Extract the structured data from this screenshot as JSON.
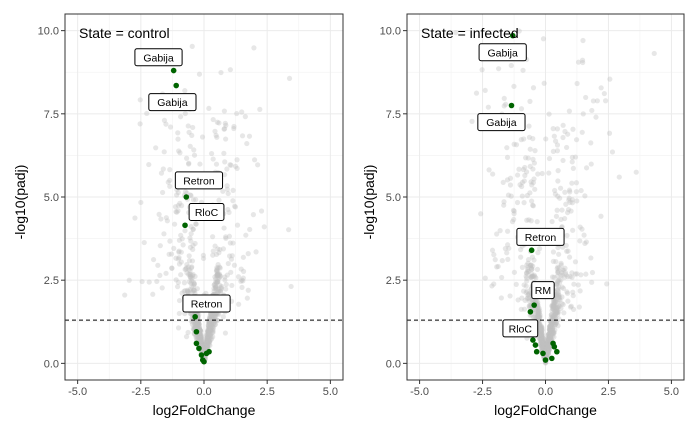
{
  "chart_data": [
    {
      "type": "scatter",
      "panel_label": "State = control",
      "xlabel": "log2FoldChange",
      "ylabel": "-log10(padj)",
      "xlim": [
        -5.5,
        5.5
      ],
      "ylim": [
        -0.5,
        10.5
      ],
      "x_ticks": [
        -5,
        -2.5,
        0,
        2.5,
        5
      ],
      "x_tick_labels": [
        "-5.0",
        "-2.5",
        "0.0",
        "2.5",
        "5.0"
      ],
      "y_ticks": [
        0,
        2.5,
        5,
        7.5,
        10
      ],
      "y_tick_labels": [
        "0.0",
        "2.5",
        "5.0",
        "7.5",
        "10.0"
      ],
      "threshold": 1.3,
      "background_color": "#bfbfbf",
      "highlight_color": "#006400",
      "highlighted": [
        {
          "x": -1.2,
          "y": 8.8
        },
        {
          "x": -1.1,
          "y": 8.35
        },
        {
          "x": -0.7,
          "y": 5.0
        },
        {
          "x": -0.75,
          "y": 4.15
        },
        {
          "x": -0.35,
          "y": 1.4
        },
        {
          "x": -0.3,
          "y": 0.95
        },
        {
          "x": -0.3,
          "y": 0.6
        },
        {
          "x": -0.2,
          "y": 0.45
        },
        {
          "x": -0.1,
          "y": 0.25
        },
        {
          "x": 0.1,
          "y": 0.3
        },
        {
          "x": 0.2,
          "y": 0.35
        },
        {
          "x": -0.05,
          "y": 0.1
        },
        {
          "x": 0.0,
          "y": 0.05
        }
      ],
      "labels": [
        {
          "text": "Gabija",
          "x": -1.8,
          "y": 9.2
        },
        {
          "text": "Gabija",
          "x": -1.25,
          "y": 7.85
        },
        {
          "text": "Retron",
          "x": -0.2,
          "y": 5.5
        },
        {
          "text": "RloC",
          "x": 0.1,
          "y": 4.55
        },
        {
          "text": "Retron",
          "x": 0.1,
          "y": 1.8
        }
      ]
    },
    {
      "type": "scatter",
      "panel_label": "State = infected",
      "xlabel": "log2FoldChange",
      "ylabel": "-log10(padj)",
      "xlim": [
        -5.5,
        5.5
      ],
      "ylim": [
        -0.5,
        10.5
      ],
      "x_ticks": [
        -5,
        -2.5,
        0,
        2.5,
        5
      ],
      "x_tick_labels": [
        "-5.0",
        "-2.5",
        "0.0",
        "2.5",
        "5.0"
      ],
      "y_ticks": [
        0,
        2.5,
        5,
        7.5,
        10
      ],
      "y_tick_labels": [
        "0.0",
        "2.5",
        "5.0",
        "7.5",
        "10.0"
      ],
      "threshold": 1.3,
      "background_color": "#bfbfbf",
      "highlight_color": "#006400",
      "highlighted": [
        {
          "x": -1.3,
          "y": 9.85
        },
        {
          "x": -1.35,
          "y": 7.75
        },
        {
          "x": -0.55,
          "y": 3.4
        },
        {
          "x": -0.45,
          "y": 1.75
        },
        {
          "x": -0.6,
          "y": 1.55
        },
        {
          "x": -0.45,
          "y": 1.15
        },
        {
          "x": -0.5,
          "y": 0.7
        },
        {
          "x": -0.4,
          "y": 0.55
        },
        {
          "x": -0.35,
          "y": 0.35
        },
        {
          "x": -0.1,
          "y": 0.3
        },
        {
          "x": 0.0,
          "y": 0.1
        },
        {
          "x": 0.3,
          "y": 0.6
        },
        {
          "x": 0.35,
          "y": 0.5
        },
        {
          "x": 0.25,
          "y": 0.15
        },
        {
          "x": 0.45,
          "y": 0.35
        }
      ],
      "labels": [
        {
          "text": "Gabija",
          "x": -1.7,
          "y": 9.35
        },
        {
          "text": "Gabija",
          "x": -1.75,
          "y": 7.25
        },
        {
          "text": "Retron",
          "x": -0.2,
          "y": 3.8
        },
        {
          "text": "RM",
          "x": -0.1,
          "y": 2.2
        },
        {
          "text": "RloC",
          "x": -1.0,
          "y": 1.05
        }
      ]
    }
  ]
}
